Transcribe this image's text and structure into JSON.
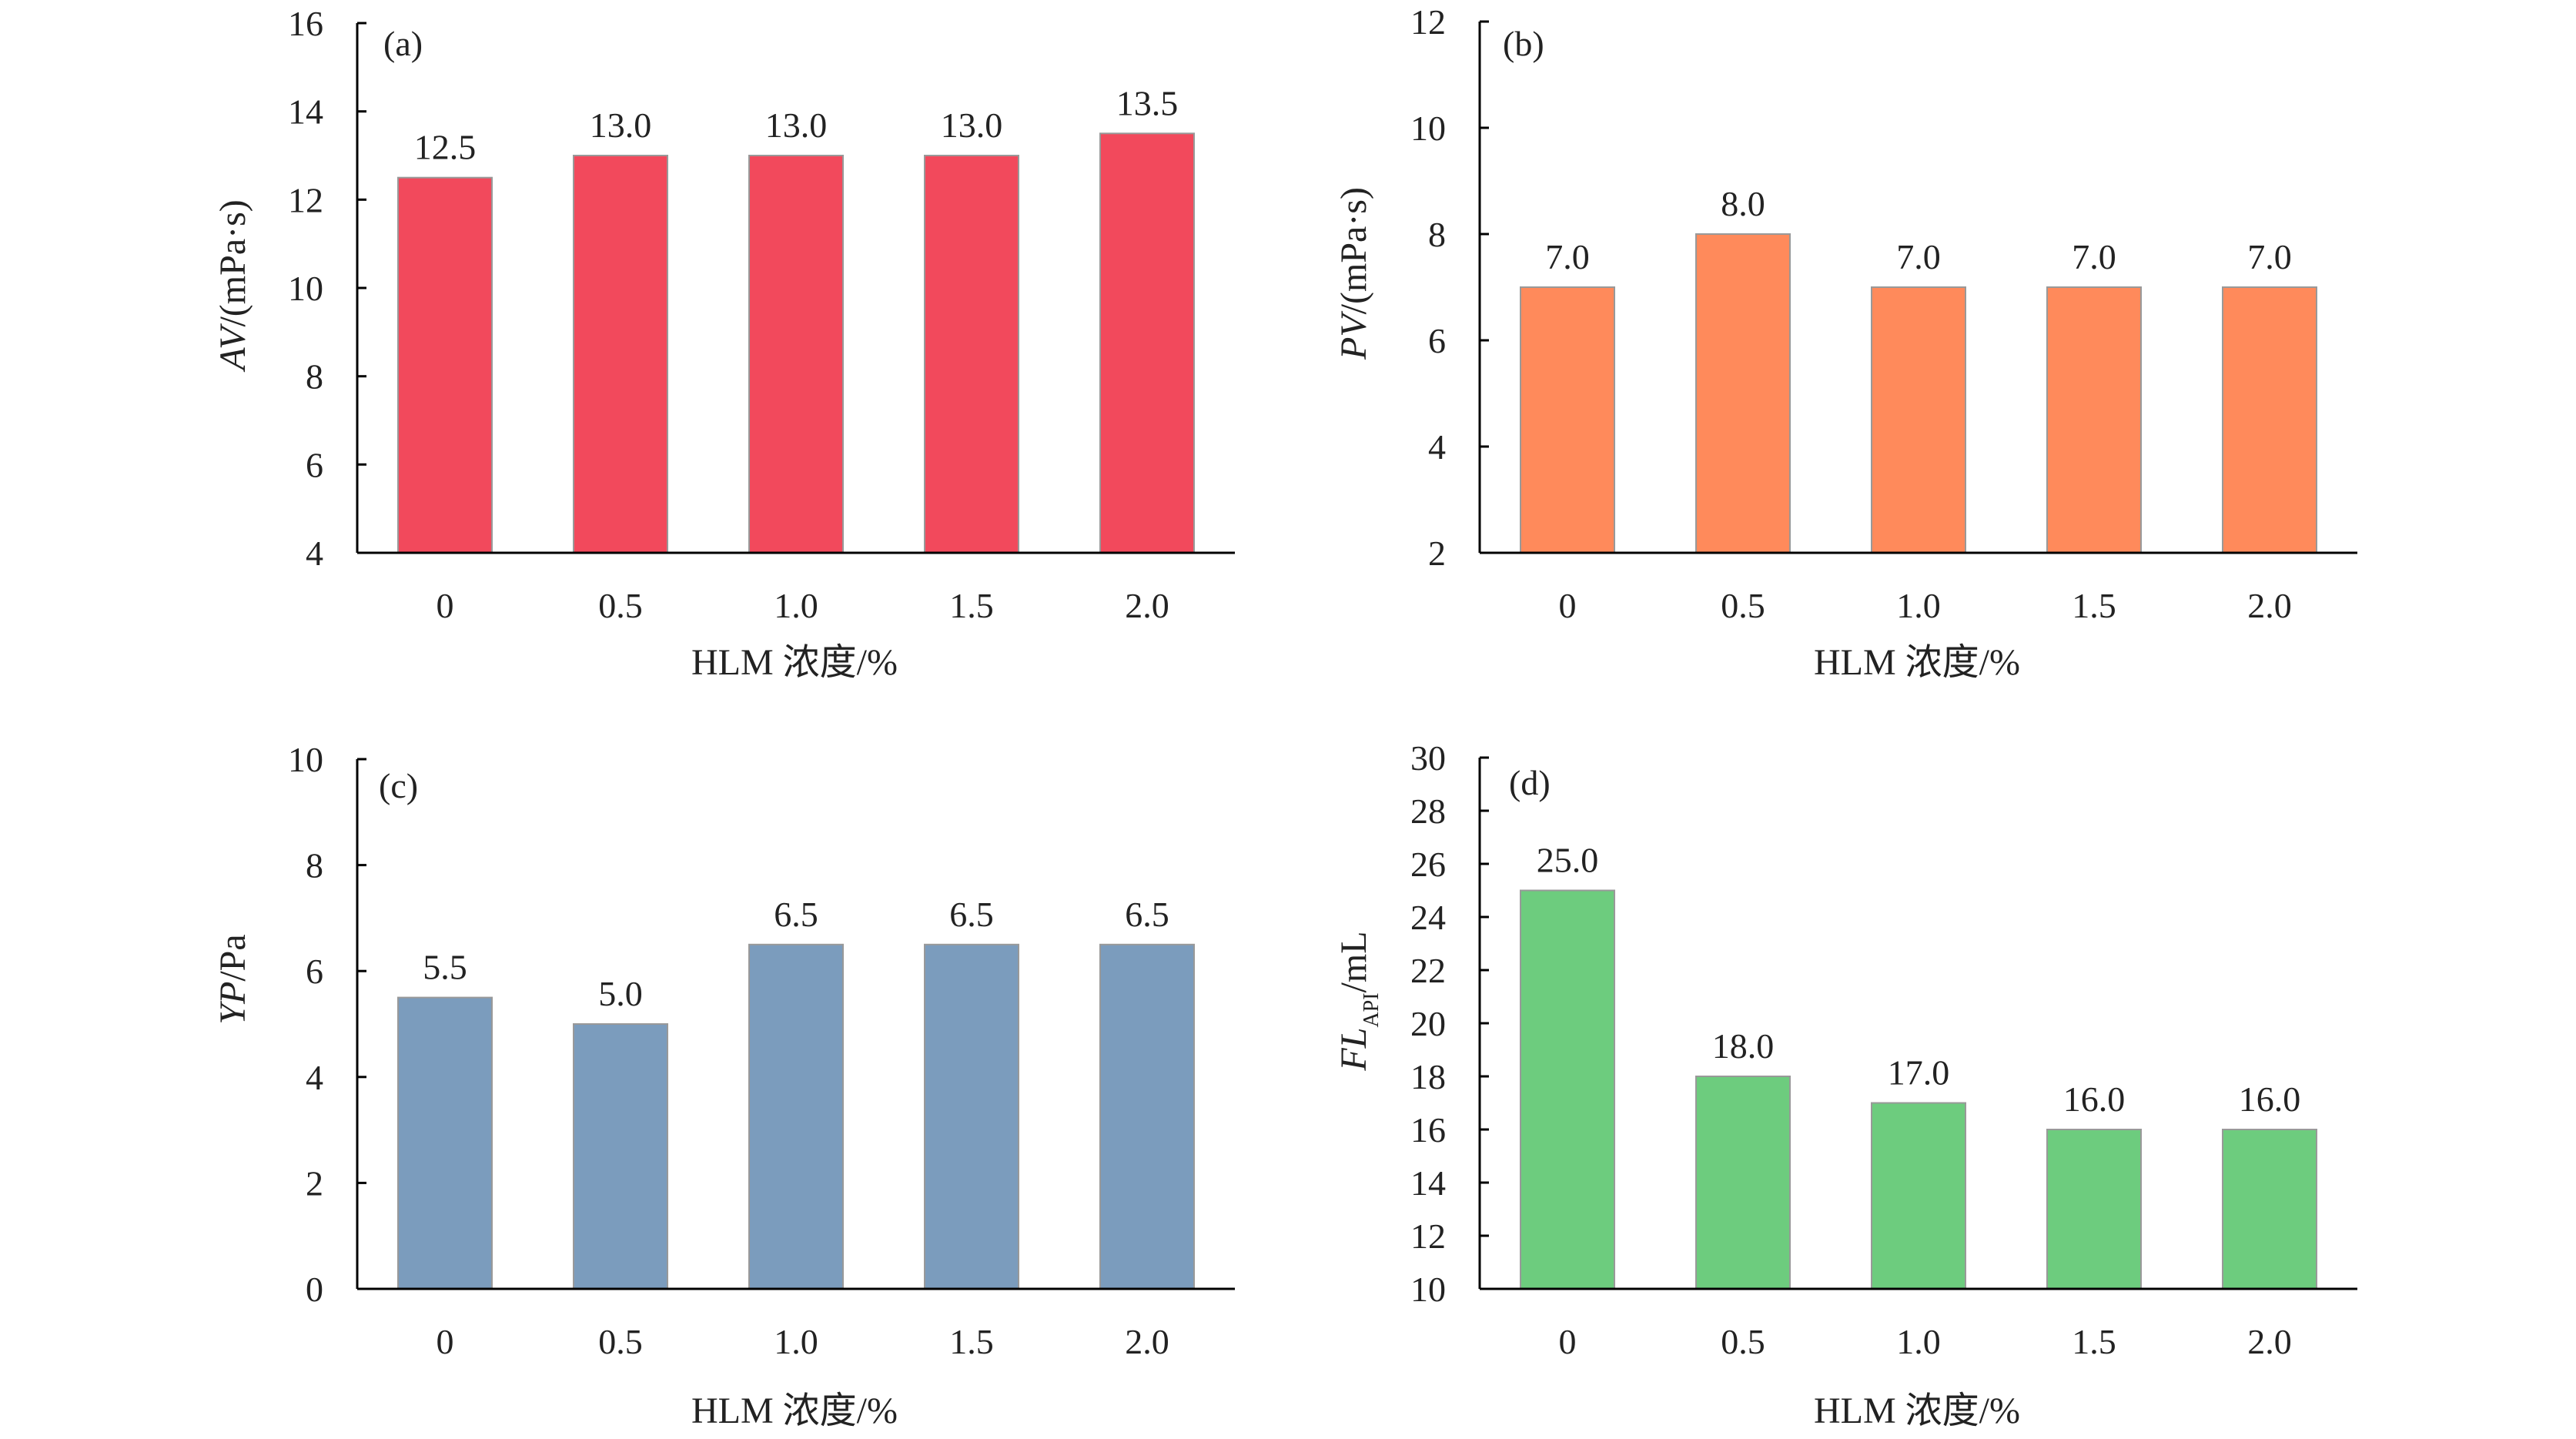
{
  "chart_data": [
    {
      "type": "bar",
      "panel_label": "(a)",
      "categories": [
        "0",
        "0.5",
        "1.0",
        "1.5",
        "2.0"
      ],
      "values": [
        12.5,
        13.0,
        13.0,
        13.0,
        13.5
      ],
      "value_labels": [
        "12.5",
        "13.0",
        "13.0",
        "13.0",
        "13.5"
      ],
      "ylim": [
        4,
        16
      ],
      "yticks": [
        "4",
        "6",
        "8",
        "10",
        "12",
        "14",
        "16"
      ],
      "ylabel_italic": "AV",
      "ylabel_rest": "/(mPa·s)",
      "xlabel": "HLM 浓度/%",
      "color": "#f2495c",
      "grid": false,
      "legend": "none"
    },
    {
      "type": "bar",
      "panel_label": "(b)",
      "categories": [
        "0",
        "0.5",
        "1.0",
        "1.5",
        "2.0"
      ],
      "values": [
        7.0,
        8.0,
        7.0,
        7.0,
        7.0
      ],
      "value_labels": [
        "7.0",
        "8.0",
        "7.0",
        "7.0",
        "7.0"
      ],
      "ylim": [
        2,
        12
      ],
      "yticks": [
        "2",
        "4",
        "6",
        "8",
        "10",
        "12"
      ],
      "ylabel_italic": "PV",
      "ylabel_rest": "/(mPa·s)",
      "xlabel": "HLM 浓度/%",
      "color": "#ff8a5b",
      "grid": false,
      "legend": "none"
    },
    {
      "type": "bar",
      "panel_label": "(c)",
      "categories": [
        "0",
        "0.5",
        "1.0",
        "1.5",
        "2.0"
      ],
      "values": [
        5.5,
        5.0,
        6.5,
        6.5,
        6.5
      ],
      "value_labels": [
        "5.5",
        "5.0",
        "6.5",
        "6.5",
        "6.5"
      ],
      "ylim": [
        0,
        10
      ],
      "yticks": [
        "0",
        "2",
        "4",
        "6",
        "8",
        "10"
      ],
      "ylabel_italic": "YP",
      "ylabel_rest": "/Pa",
      "xlabel": "HLM 浓度/%",
      "color": "#7b9cbd",
      "grid": false,
      "legend": "none"
    },
    {
      "type": "bar",
      "panel_label": "(d)",
      "categories": [
        "0",
        "0.5",
        "1.0",
        "1.5",
        "2.0"
      ],
      "values": [
        25.0,
        18.0,
        17.0,
        16.0,
        16.0
      ],
      "value_labels": [
        "25.0",
        "18.0",
        "17.0",
        "16.0",
        "16.0"
      ],
      "ylim": [
        10,
        30
      ],
      "yticks": [
        "10",
        "12",
        "14",
        "16",
        "18",
        "20",
        "22",
        "24",
        "26",
        "28",
        "30"
      ],
      "ylabel_italic": "FL",
      "ylabel_sub": "API",
      "ylabel_rest": "/mL",
      "xlabel": "HLM 浓度/%",
      "color": "#6dcc7e",
      "grid": false,
      "legend": "none"
    }
  ]
}
